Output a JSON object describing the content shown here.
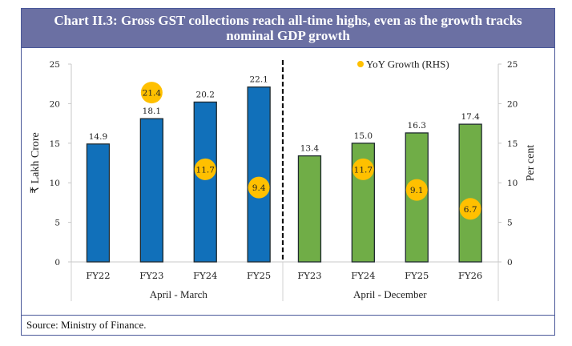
{
  "header": {
    "title": "Chart II.3: Gross GST collections reach all-time highs, even as the growth tracks nominal GDP growth"
  },
  "source": "Source: Ministry of Finance.",
  "colors": {
    "header_bg": "#6b70a3",
    "frame_border": "#4a5899",
    "bar_april_march": "#1170ba",
    "bar_april_december": "#70ad47",
    "growth_marker": "#ffc000"
  },
  "chart_data": {
    "type": "bar",
    "title": "Chart II.3: Gross GST collections reach all-time highs, even as the growth tracks nominal GDP growth",
    "ylabel": "₹ Lakh Crore",
    "y2label": "Per cent",
    "ylim": [
      0,
      25
    ],
    "y2lim": [
      0,
      25
    ],
    "yticks": [
      "0",
      "5",
      "10",
      "15",
      "20",
      "25"
    ],
    "y2ticks": [
      "0",
      "5",
      "10",
      "15",
      "20",
      "25"
    ],
    "legend": {
      "label": "YoY Growth (RHS)",
      "position": "top-right"
    },
    "groups": [
      {
        "name": "April - March",
        "categories": [
          "FY22",
          "FY23",
          "FY24",
          "FY25"
        ],
        "values": [
          14.9,
          18.1,
          20.2,
          22.1
        ],
        "value_labels": [
          "14.9",
          "18.1",
          "20.2",
          "22.1"
        ],
        "growth": [
          null,
          21.4,
          11.7,
          9.4
        ],
        "growth_labels": [
          null,
          "21.4",
          "11.7",
          "9.4"
        ]
      },
      {
        "name": "April - December",
        "categories": [
          "FY23",
          "FY24",
          "FY25",
          "FY26"
        ],
        "values": [
          13.4,
          15.0,
          16.3,
          17.4
        ],
        "value_labels": [
          "13.4",
          "15.0",
          "16.3",
          "17.4"
        ],
        "growth": [
          null,
          11.7,
          9.1,
          6.7
        ],
        "growth_labels": [
          null,
          "11.7",
          "9.1",
          "6.7"
        ]
      }
    ],
    "series": [
      {
        "name": "Gross GST collections (₹ Lakh Crore)",
        "axis": "left",
        "type": "bar"
      },
      {
        "name": "YoY Growth (RHS)",
        "axis": "right",
        "type": "scatter"
      }
    ],
    "grid": false
  }
}
